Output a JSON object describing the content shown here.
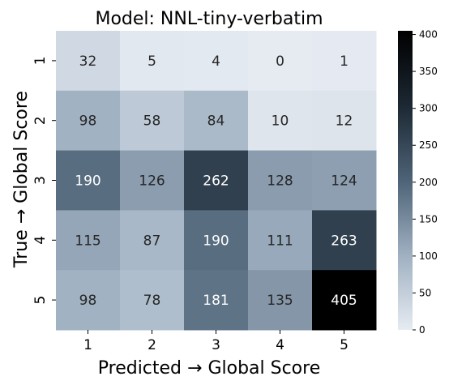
{
  "chart_data": {
    "type": "heatmap",
    "title": "Model: NNL-tiny-verbatim",
    "xlabel": "Predicted → Global Score",
    "ylabel": "True → Global Score",
    "x_categories": [
      "1",
      "2",
      "3",
      "4",
      "5"
    ],
    "y_categories": [
      "1",
      "2",
      "3",
      "4",
      "5"
    ],
    "values": [
      [
        32,
        5,
        4,
        0,
        1
      ],
      [
        98,
        58,
        84,
        10,
        12
      ],
      [
        190,
        126,
        262,
        128,
        124
      ],
      [
        115,
        87,
        190,
        111,
        263
      ],
      [
        98,
        78,
        181,
        135,
        405
      ]
    ],
    "value_range": [
      0,
      405
    ],
    "colorbar_ticks": [
      0,
      50,
      100,
      150,
      200,
      250,
      300,
      350,
      400
    ],
    "colormap": [
      "#e6ebf2",
      "#9fb0c1",
      "#4e6377",
      "#1c2833",
      "#000000"
    ],
    "legend": "right colorbar",
    "grid": false
  }
}
